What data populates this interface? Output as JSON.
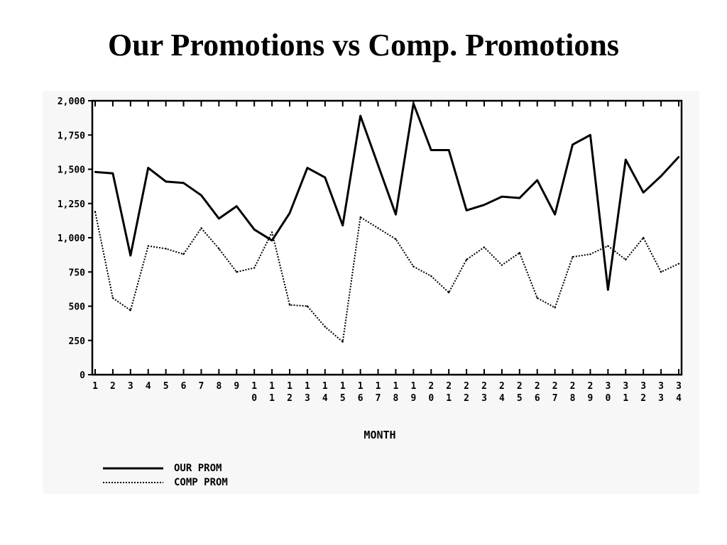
{
  "title": "Our Promotions vs Comp. Promotions",
  "chart_data": {
    "type": "line",
    "title": "Our Promotions vs Comp. Promotions",
    "xlabel": "MONTH",
    "ylabel": "",
    "ylim": [
      0,
      2000
    ],
    "yticks": [
      0,
      250,
      500,
      750,
      1000,
      1250,
      1500,
      1750,
      2000
    ],
    "ytick_labels": [
      "0",
      "250",
      "500",
      "750",
      "1,000",
      "1,250",
      "1,500",
      "1,750",
      "2,000"
    ],
    "categories": [
      "1",
      "2",
      "3",
      "4",
      "5",
      "6",
      "7",
      "8",
      "9",
      "10",
      "11",
      "12",
      "13",
      "14",
      "15",
      "16",
      "17",
      "18",
      "19",
      "20",
      "21",
      "22",
      "23",
      "24",
      "25",
      "26",
      "27",
      "28",
      "29",
      "30",
      "31",
      "32",
      "33",
      "34"
    ],
    "series": [
      {
        "name": "OUR PROM",
        "style": "solid",
        "values": [
          1480,
          1470,
          870,
          1510,
          1410,
          1400,
          1310,
          1140,
          1230,
          1060,
          980,
          1180,
          1510,
          1440,
          1090,
          1890,
          1530,
          1170,
          1980,
          1640,
          1640,
          1200,
          1240,
          1300,
          1290,
          1420,
          1170,
          1680,
          1750,
          620,
          1570,
          1330,
          1450,
          1590
        ]
      },
      {
        "name": "COMP PROM",
        "style": "dotted",
        "values": [
          1190,
          560,
          470,
          940,
          920,
          880,
          1070,
          920,
          750,
          780,
          1040,
          510,
          500,
          350,
          240,
          1150,
          1070,
          990,
          790,
          720,
          600,
          840,
          930,
          800,
          890,
          560,
          490,
          860,
          880,
          940,
          840,
          1000,
          750,
          810
        ]
      }
    ],
    "grid": false,
    "legend_position": "bottom-left"
  }
}
